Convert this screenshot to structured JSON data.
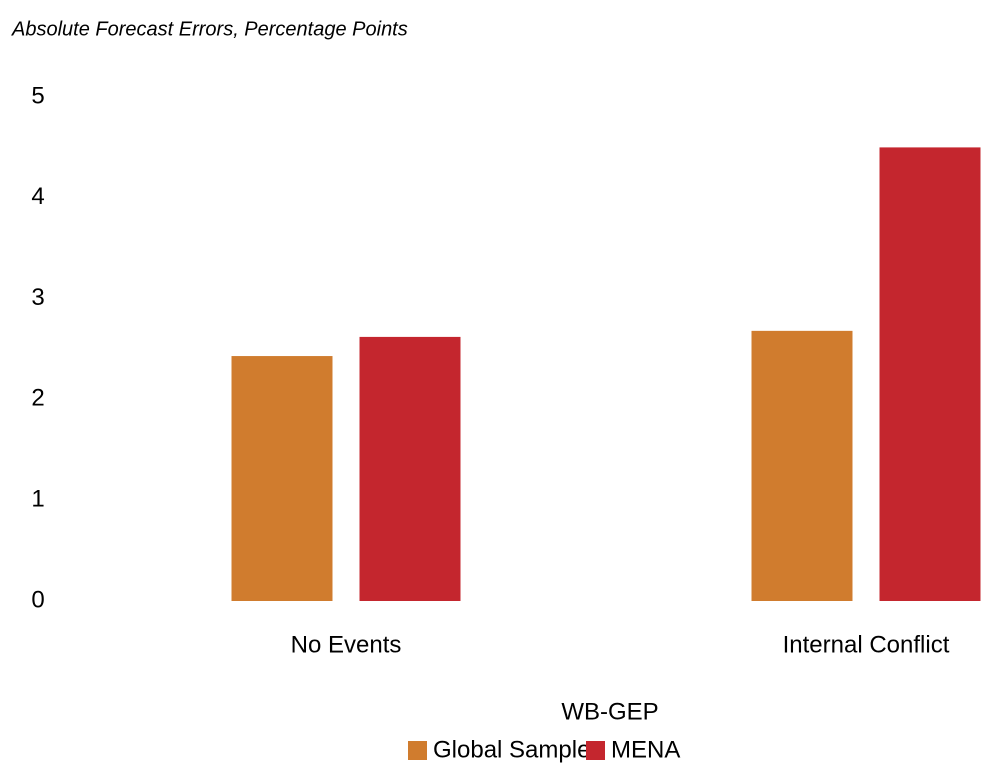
{
  "chart_data": {
    "type": "bar",
    "subtitle": "Absolute Forecast Errors, Percentage Points",
    "categories": [
      "No Events",
      "Internal Conflict"
    ],
    "series": [
      {
        "name": "Global Sample",
        "color": "#d07c2e",
        "values": [
          2.43,
          2.68
        ]
      },
      {
        "name": "MENA",
        "color": "#c4262e",
        "values": [
          2.62,
          4.5
        ]
      }
    ],
    "legend_title": "WB-GEP",
    "ylim": [
      0,
      5
    ],
    "yticks": [
      0,
      1,
      2,
      3,
      4,
      5
    ],
    "grid": false,
    "legend": "bottom"
  }
}
